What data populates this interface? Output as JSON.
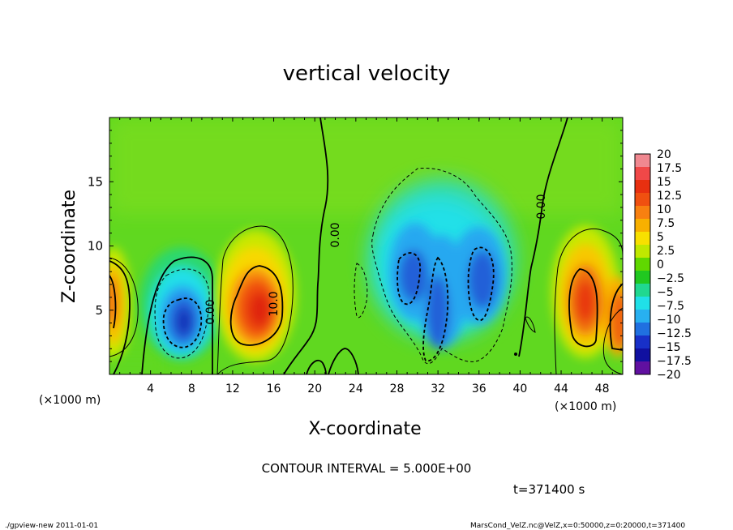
{
  "chart_data": {
    "type": "heatmap",
    "title": "vertical velocity",
    "xlabel": "X-coordinate",
    "ylabel": "Z-coordinate",
    "x_unit_label": "(×1000 m)",
    "x_unit_label_right": "(×1000 m)",
    "xlim": [
      0,
      50
    ],
    "ylim": [
      0,
      20
    ],
    "x_ticks": [
      4,
      8,
      12,
      16,
      20,
      24,
      28,
      32,
      36,
      40,
      44,
      48
    ],
    "y_ticks": [
      5,
      10,
      15
    ],
    "contour_interval_label": "CONTOUR INTERVAL = 5.000E+00",
    "time_label": "t=371400 s",
    "contour_labels": [
      "0.00",
      "0.00",
      "10.0",
      "0.00",
      "0.00"
    ],
    "colorbar": {
      "min": -20,
      "max": 20,
      "ticks": [
        "20",
        "17.5",
        "15",
        "12.5",
        "10",
        "7.5",
        "5",
        "2.5",
        "0",
        "-2.5",
        "-5",
        "-7.5",
        "-10",
        "-12.5",
        "-15",
        "-17.5",
        "-20"
      ],
      "colors": [
        "#f08890",
        "#f04848",
        "#e83010",
        "#f05010",
        "#f88010",
        "#f8b000",
        "#f8e000",
        "#c0e800",
        "#60d800",
        "#20c820",
        "#20d890",
        "#20e0e8",
        "#28b0f0",
        "#2070e0",
        "#1830c8",
        "#1010a0",
        "#6010a0"
      ]
    },
    "features": [
      {
        "kind": "updraft",
        "x": 0.5,
        "z": 5,
        "max": 12
      },
      {
        "kind": "downdraft",
        "x": 7.3,
        "z": 4.2,
        "min": -12
      },
      {
        "kind": "updraft",
        "x": 14.7,
        "z": 5.2,
        "max": 15
      },
      {
        "kind": "downdraft",
        "x": 30.5,
        "z": 7.0,
        "min": -10
      },
      {
        "kind": "downdraft",
        "x": 36.3,
        "z": 7.0,
        "min": -10
      },
      {
        "kind": "updraft",
        "x": 46.3,
        "z": 5.5,
        "max": 13
      },
      {
        "kind": "updraft",
        "x": 49.3,
        "z": 4.0,
        "max": 12
      }
    ]
  },
  "footer": {
    "left": "./gpview-new  2011-01-01",
    "right": "MarsCond_VelZ.nc@VelZ,x=0:50000,z=0:20000,t=371400"
  }
}
